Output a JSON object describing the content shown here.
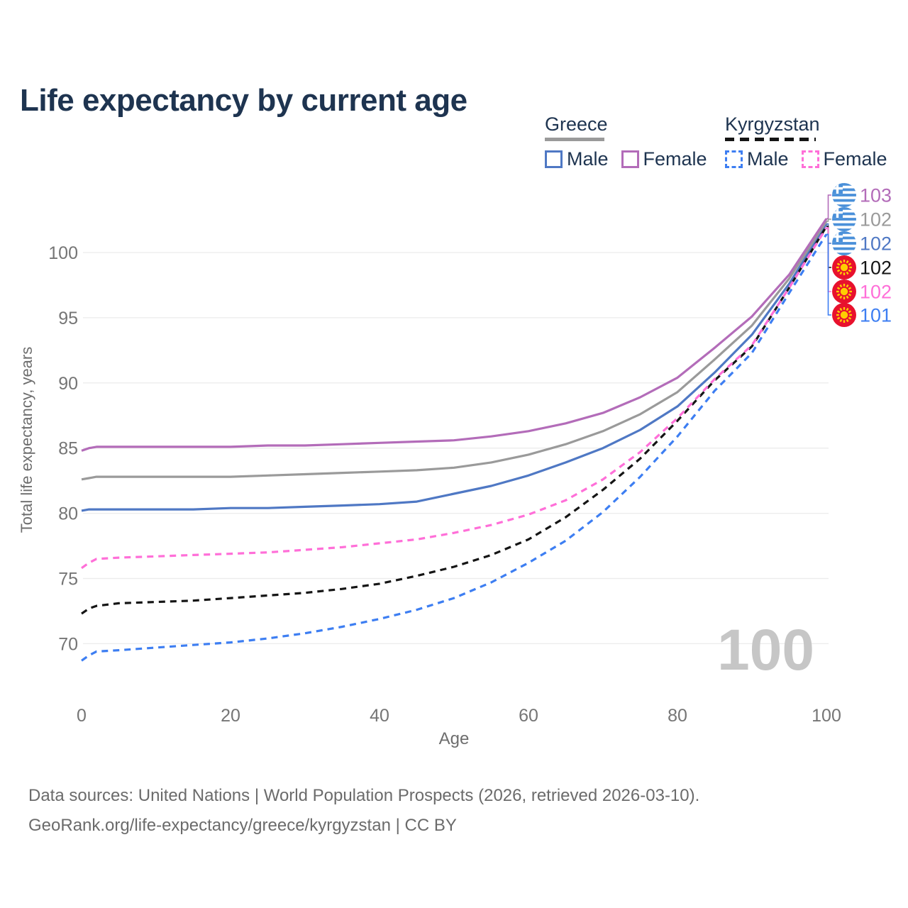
{
  "page": {
    "title": "Life expectancy by current age",
    "footer_line1": "Data sources: United Nations | World Population Prospects (2026, retrieved 2026-03-10).",
    "footer_line2": "GeoRank.org/life-expectancy/greece/kyrgyzstan | CC BY"
  },
  "legend": {
    "groups": [
      {
        "country": "Greece",
        "line_style": "solid",
        "underline_color": "#9a9a9a",
        "items": [
          {
            "label": "Male",
            "color": "#4F78C4"
          },
          {
            "label": "Female",
            "color": "#B36CB9"
          }
        ]
      },
      {
        "country": "Kyrgyzstan",
        "line_style": "dashed",
        "underline_color": "#151515",
        "items": [
          {
            "label": "Male",
            "color": "#3D7EF2"
          },
          {
            "label": "Female",
            "color": "#FF6FD8"
          }
        ]
      }
    ]
  },
  "chart_data": {
    "type": "line",
    "title": "Life expectancy by current age",
    "xlabel": "Age",
    "ylabel": "Total life expectancy, years",
    "xlim": [
      0,
      100
    ],
    "ylim": [
      67,
      104
    ],
    "xticks": [
      0,
      20,
      40,
      60,
      80,
      100
    ],
    "yticks": [
      70,
      75,
      80,
      85,
      90,
      95,
      100
    ],
    "grid": "horizontal",
    "legend_position": "top-right",
    "watermark": "100",
    "x": [
      0,
      1,
      2,
      5,
      10,
      15,
      20,
      25,
      30,
      35,
      40,
      45,
      50,
      55,
      60,
      65,
      70,
      75,
      80,
      85,
      90,
      95,
      100
    ],
    "series": [
      {
        "name": "Greece Female",
        "country": "Greece",
        "sex": "Female",
        "color": "#B36CB9",
        "dash": "",
        "flag": "greece",
        "end_label": "103",
        "values": [
          84.8,
          85.0,
          85.1,
          85.1,
          85.1,
          85.1,
          85.1,
          85.2,
          85.2,
          85.3,
          85.4,
          85.5,
          85.6,
          85.9,
          86.3,
          86.9,
          87.7,
          88.9,
          90.4,
          92.7,
          95.1,
          98.3,
          102.6
        ]
      },
      {
        "name": "Greece All",
        "country": "Greece",
        "sex": "All",
        "color": "#9A9A9A",
        "dash": "",
        "flag": "greece",
        "end_label": "102",
        "values": [
          82.6,
          82.7,
          82.8,
          82.8,
          82.8,
          82.8,
          82.8,
          82.9,
          83.0,
          83.1,
          83.2,
          83.3,
          83.5,
          83.9,
          84.5,
          85.3,
          86.3,
          87.6,
          89.3,
          91.8,
          94.4,
          98.0,
          102.4
        ]
      },
      {
        "name": "Greece Male",
        "country": "Greece",
        "sex": "Male",
        "color": "#4F78C4",
        "dash": "",
        "flag": "greece",
        "end_label": "102",
        "values": [
          80.2,
          80.3,
          80.3,
          80.3,
          80.3,
          80.3,
          80.4,
          80.4,
          80.5,
          80.6,
          80.7,
          80.9,
          81.5,
          82.1,
          82.9,
          83.9,
          85.0,
          86.4,
          88.2,
          90.8,
          93.7,
          97.6,
          102.2
        ]
      },
      {
        "name": "Kyrgyzstan All",
        "country": "Kyrgyzstan",
        "sex": "All",
        "color": "#151515",
        "dash": "9 7",
        "flag": "kyrgyzstan",
        "end_label": "102",
        "values": [
          72.3,
          72.7,
          72.9,
          73.1,
          73.2,
          73.3,
          73.5,
          73.7,
          73.9,
          74.2,
          74.6,
          75.2,
          75.9,
          76.8,
          78.0,
          79.7,
          81.8,
          84.2,
          87.1,
          90.2,
          92.8,
          97.3,
          102.0
        ]
      },
      {
        "name": "Kyrgyzstan Female",
        "country": "Kyrgyzstan",
        "sex": "Female",
        "color": "#FF6FD8",
        "dash": "9 7",
        "flag": "kyrgyzstan",
        "end_label": "102",
        "values": [
          75.8,
          76.2,
          76.5,
          76.6,
          76.7,
          76.8,
          76.9,
          77.0,
          77.2,
          77.4,
          77.7,
          78.0,
          78.5,
          79.1,
          79.9,
          81.0,
          82.6,
          84.7,
          87.3,
          90.3,
          92.9,
          97.3,
          101.9
        ]
      },
      {
        "name": "Kyrgyzstan Male",
        "country": "Kyrgyzstan",
        "sex": "Male",
        "color": "#3D7EF2",
        "dash": "9 7",
        "flag": "kyrgyzstan",
        "end_label": "101",
        "values": [
          68.7,
          69.1,
          69.4,
          69.5,
          69.7,
          69.9,
          70.1,
          70.4,
          70.8,
          71.3,
          71.9,
          72.6,
          73.5,
          74.7,
          76.2,
          77.9,
          80.1,
          82.8,
          85.9,
          89.4,
          92.3,
          96.9,
          101.4
        ]
      }
    ]
  }
}
